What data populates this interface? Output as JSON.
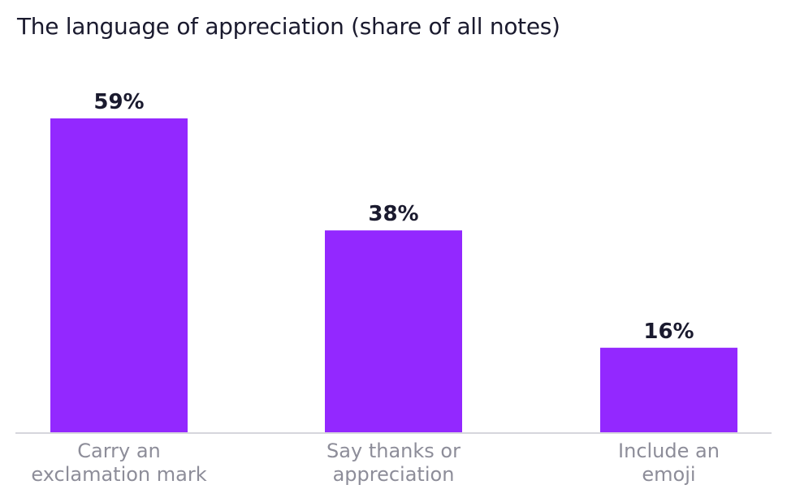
{
  "chart_data": {
    "type": "bar",
    "title": "The language of appreciation (share of all notes)",
    "categories": [
      [
        "Carry an",
        "exclamation mark"
      ],
      [
        "Say thanks or",
        "appreciation"
      ],
      [
        "Include an",
        "emoji"
      ]
    ],
    "values": [
      59,
      38,
      16
    ],
    "value_labels": [
      "59%",
      "38%",
      "16%"
    ],
    "unit": "%",
    "ylim": [
      0,
      59
    ],
    "grid": false,
    "legend": "none",
    "bar_color": "#9328ff",
    "axis_color": "#d6d6dc",
    "category_label_color": "#8d8d99",
    "value_label_color": "#1a1a2e"
  }
}
